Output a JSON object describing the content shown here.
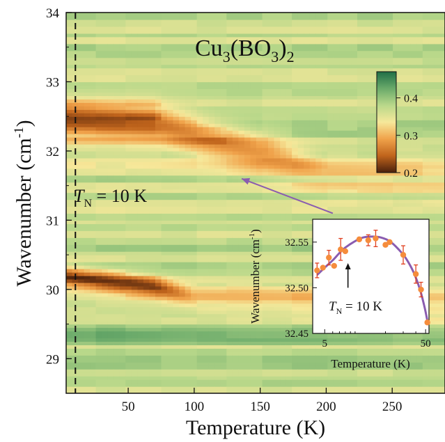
{
  "chart_data": [
    {
      "type": "heatmap",
      "title": "Cu3(BO3)2",
      "title_parts": {
        "base": "Cu",
        "sub1": "3",
        "mid": "(BO",
        "sub2": "3",
        "close": ")",
        "sub3": "2"
      },
      "xlabel": "Temperature (K)",
      "ylabel_parts": {
        "base": "Wavenumber (cm",
        "sup": "-1",
        "close": ")"
      },
      "xlim": [
        3,
        290
      ],
      "ylim": [
        28.5,
        34
      ],
      "xticks": [
        50,
        100,
        150,
        200,
        250
      ],
      "yticks": [
        29,
        30,
        31,
        32,
        33,
        34
      ],
      "background_value": 0.37,
      "colorbar": {
        "range": [
          0.2,
          0.47
        ],
        "ticks": [
          0.2,
          0.3,
          0.4
        ],
        "colors": [
          "#4a200c",
          "#c0641c",
          "#f0a24a",
          "#f6e89a",
          "#b9d88a",
          "#6aaa6a",
          "#1f6e46"
        ]
      },
      "bands": [
        {
          "center": [
            [
              3,
              32.45
            ],
            [
              70,
              32.4
            ],
            [
              120,
              32.15
            ],
            [
              160,
              31.95
            ],
            [
              200,
              31.7
            ]
          ],
          "half_width": 0.32,
          "strength": [
            [
              3,
              1.0
            ],
            [
              70,
              0.95
            ],
            [
              75,
              0.8
            ],
            [
              150,
              0.55
            ],
            [
              200,
              0.2
            ]
          ]
        },
        {
          "center": [
            [
              3,
              30.2
            ],
            [
              70,
              30.05
            ],
            [
              100,
              29.9
            ]
          ],
          "half_width": 0.17,
          "strength": [
            [
              3,
              0.9
            ],
            [
              70,
              0.8
            ],
            [
              100,
              0.25
            ]
          ]
        },
        {
          "center": [
            [
              3,
              30.1
            ],
            [
              100,
              29.95
            ],
            [
              290,
              29.65
            ]
          ],
          "half_width": 0.28,
          "strength": [
            [
              3,
              0.35
            ],
            [
              290,
              0.35
            ]
          ],
          "kind": "yellow"
        },
        {
          "center": [
            [
              3,
              31.9
            ],
            [
              200,
              31.65
            ],
            [
              290,
              31.45
            ]
          ],
          "half_width": 0.3,
          "strength": [
            [
              3,
              0.2
            ],
            [
              290,
              0.35
            ]
          ],
          "kind": "yellow"
        },
        {
          "center": [
            [
              3,
              29.35
            ],
            [
              290,
              29.35
            ]
          ],
          "half_width": 0.12,
          "strength": [
            [
              3,
              0.8
            ],
            [
              100,
              0.6
            ],
            [
              290,
              0.4
            ]
          ],
          "kind": "dark"
        }
      ],
      "annotations": {
        "tn_line_x": 10,
        "tn_label": {
          "prefix": "T",
          "sub": "N",
          "text": " = 10 K",
          "x": 5,
          "y": 31.25
        },
        "arrow": {
          "from": [
            205,
            31.1
          ],
          "to": [
            136,
            31.6
          ]
        }
      }
    },
    {
      "type": "scatter",
      "subplot": "inset",
      "xlabel": "Temperature (K)",
      "ylabel_parts": {
        "base": "Wavenumber (cm",
        "sup": "-1",
        "close": ")"
      },
      "xscale": "log",
      "xlim": [
        3.8,
        54
      ],
      "ylim": [
        32.45,
        32.575
      ],
      "xticks": [
        5,
        50
      ],
      "yticks": [
        32.45,
        32.5,
        32.55
      ],
      "ytick_labels": [
        "32.45",
        "32.50",
        "32.55"
      ],
      "points": [
        {
          "x": 4.2,
          "y": 32.519,
          "err": 0.008
        },
        {
          "x": 4.8,
          "y": 32.522
        },
        {
          "x": 5.5,
          "y": 32.533,
          "err": 0.008
        },
        {
          "x": 6.2,
          "y": 32.524
        },
        {
          "x": 7.2,
          "y": 32.542,
          "err": 0.012
        },
        {
          "x": 8.0,
          "y": 32.54
        },
        {
          "x": 11.0,
          "y": 32.553
        },
        {
          "x": 13.5,
          "y": 32.552,
          "err": 0.006
        },
        {
          "x": 16.0,
          "y": 32.554,
          "err": 0.009
        },
        {
          "x": 20.0,
          "y": 32.547
        },
        {
          "x": 22.0,
          "y": 32.55
        },
        {
          "x": 30.0,
          "y": 32.536,
          "err": 0.01
        },
        {
          "x": 40.0,
          "y": 32.515,
          "err": 0.01
        },
        {
          "x": 45.0,
          "y": 32.498,
          "err": 0.008
        },
        {
          "x": 52.0,
          "y": 32.462
        }
      ],
      "fit_curve": [
        [
          4.2,
          32.514
        ],
        [
          5.0,
          32.522
        ],
        [
          6.0,
          32.53
        ],
        [
          7.0,
          32.538
        ],
        [
          8.0,
          32.544
        ],
        [
          10.0,
          32.551
        ],
        [
          12.0,
          32.555
        ],
        [
          15.0,
          32.556
        ],
        [
          18.0,
          32.555
        ],
        [
          22.0,
          32.551
        ],
        [
          27.0,
          32.542
        ],
        [
          32.0,
          32.532
        ],
        [
          38.0,
          32.517
        ],
        [
          44.0,
          32.498
        ],
        [
          49.0,
          32.478
        ],
        [
          52.0,
          32.464
        ]
      ],
      "arrow": {
        "x": 8.5,
        "y_from": 32.5,
        "y_to": 32.527
      },
      "tn_label": {
        "prefix": "T",
        "sub": "N",
        "text": " = 10 K"
      },
      "colors": {
        "points": "#f58c3c",
        "errorbars": "#e04020",
        "curve": "#8a5cb0"
      }
    }
  ]
}
